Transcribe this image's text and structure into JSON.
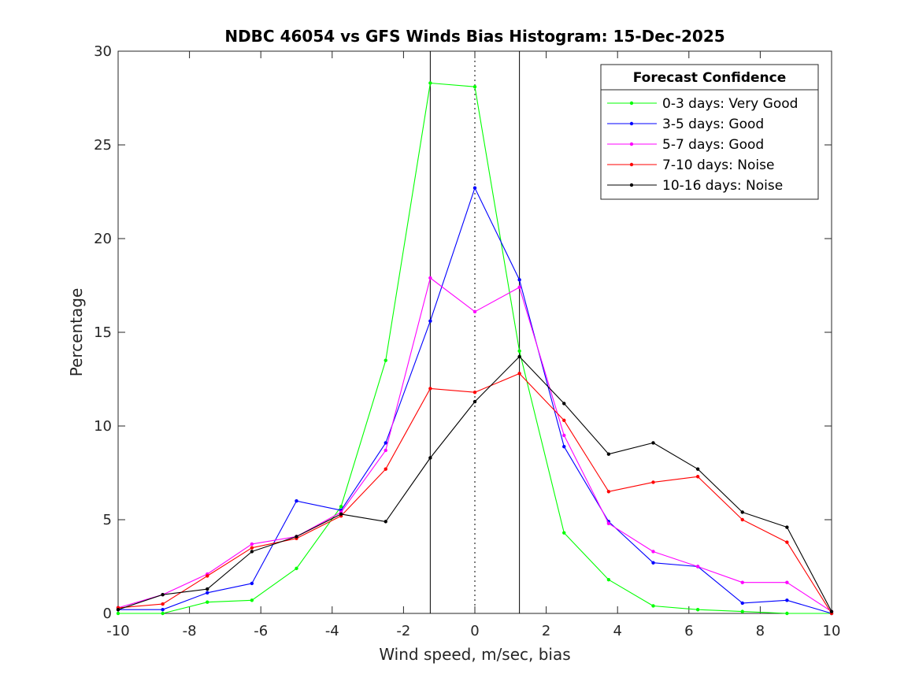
{
  "chart_data": {
    "type": "line",
    "title": "NDBC 46054 vs GFS Winds Bias Histogram: 15-Dec-2025",
    "xlabel": "Wind speed, m/sec, bias",
    "ylabel": "Percentage",
    "xlim": [
      -10,
      10
    ],
    "ylim": [
      0,
      30
    ],
    "xticks": [
      -10,
      -8,
      -6,
      -4,
      -2,
      0,
      2,
      4,
      6,
      8,
      10
    ],
    "yticks": [
      0,
      5,
      10,
      15,
      20,
      25,
      30
    ],
    "grid": false,
    "legend": {
      "title": "Forecast Confidence",
      "position": "top-right"
    },
    "x": [
      -10,
      -8.75,
      -7.5,
      -6.25,
      -5,
      -3.75,
      -2.5,
      -1.25,
      0,
      1.25,
      2.5,
      3.75,
      5,
      6.25,
      7.5,
      8.75,
      10
    ],
    "series": [
      {
        "name": "0-3 days: Very Good",
        "color": "#00ff00",
        "values": [
          0,
          0,
          0.6,
          0.7,
          2.4,
          5.7,
          13.5,
          28.3,
          28.1,
          14.0,
          4.3,
          1.8,
          0.4,
          0.2,
          0.1,
          0.0,
          0.0
        ]
      },
      {
        "name": "3-5 days: Good",
        "color": "#0000ff",
        "values": [
          0.2,
          0.2,
          1.1,
          1.6,
          6.0,
          5.5,
          9.1,
          15.6,
          22.7,
          17.8,
          8.9,
          4.9,
          2.7,
          2.5,
          0.55,
          0.7,
          0.0
        ]
      },
      {
        "name": "5-7 days: Good",
        "color": "#ff00ff",
        "values": [
          0.3,
          1.0,
          2.1,
          3.7,
          4.1,
          5.4,
          8.7,
          17.9,
          16.1,
          17.4,
          9.5,
          4.8,
          3.3,
          2.5,
          1.65,
          1.65,
          0.1
        ]
      },
      {
        "name": "7-10 days: Noise",
        "color": "#ff0000",
        "values": [
          0.3,
          0.5,
          2.0,
          3.5,
          4.0,
          5.2,
          7.7,
          12.0,
          11.8,
          12.8,
          10.3,
          6.5,
          7.0,
          7.3,
          5.0,
          3.8,
          0.0
        ]
      },
      {
        "name": "10-16 days: Noise",
        "color": "#000000",
        "values": [
          0.2,
          1.0,
          1.3,
          3.3,
          4.1,
          5.3,
          4.9,
          8.3,
          11.3,
          13.7,
          11.2,
          8.5,
          9.1,
          7.7,
          5.4,
          4.6,
          0.1
        ]
      }
    ],
    "reference_lines": [
      {
        "name": "lower-bound-line",
        "x": -1.25,
        "style": "solid"
      },
      {
        "name": "zero-line",
        "x": 0,
        "style": "dotted"
      },
      {
        "name": "upper-bound-line",
        "x": 1.25,
        "style": "solid"
      }
    ]
  }
}
